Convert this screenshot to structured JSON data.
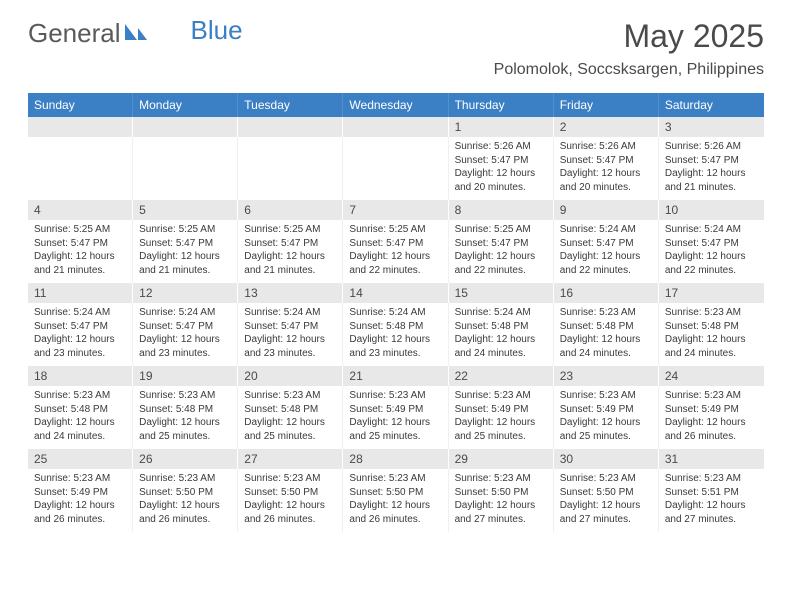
{
  "brand": {
    "part1": "General",
    "part2": "Blue"
  },
  "title": "May 2025",
  "location": "Polomolok, Soccsksargen, Philippines",
  "colors": {
    "header_bg": "#3b7fc4",
    "header_text": "#ffffff",
    "daynum_bg": "#e8e8e8",
    "body_bg": "#ffffff",
    "text": "#3a3a3a"
  },
  "weekdays": [
    "Sunday",
    "Monday",
    "Tuesday",
    "Wednesday",
    "Thursday",
    "Friday",
    "Saturday"
  ],
  "weeks": [
    [
      {
        "n": "",
        "lines": []
      },
      {
        "n": "",
        "lines": []
      },
      {
        "n": "",
        "lines": []
      },
      {
        "n": "",
        "lines": []
      },
      {
        "n": "1",
        "lines": [
          "Sunrise: 5:26 AM",
          "Sunset: 5:47 PM",
          "Daylight: 12 hours and 20 minutes."
        ]
      },
      {
        "n": "2",
        "lines": [
          "Sunrise: 5:26 AM",
          "Sunset: 5:47 PM",
          "Daylight: 12 hours and 20 minutes."
        ]
      },
      {
        "n": "3",
        "lines": [
          "Sunrise: 5:26 AM",
          "Sunset: 5:47 PM",
          "Daylight: 12 hours and 21 minutes."
        ]
      }
    ],
    [
      {
        "n": "4",
        "lines": [
          "Sunrise: 5:25 AM",
          "Sunset: 5:47 PM",
          "Daylight: 12 hours and 21 minutes."
        ]
      },
      {
        "n": "5",
        "lines": [
          "Sunrise: 5:25 AM",
          "Sunset: 5:47 PM",
          "Daylight: 12 hours and 21 minutes."
        ]
      },
      {
        "n": "6",
        "lines": [
          "Sunrise: 5:25 AM",
          "Sunset: 5:47 PM",
          "Daylight: 12 hours and 21 minutes."
        ]
      },
      {
        "n": "7",
        "lines": [
          "Sunrise: 5:25 AM",
          "Sunset: 5:47 PM",
          "Daylight: 12 hours and 22 minutes."
        ]
      },
      {
        "n": "8",
        "lines": [
          "Sunrise: 5:25 AM",
          "Sunset: 5:47 PM",
          "Daylight: 12 hours and 22 minutes."
        ]
      },
      {
        "n": "9",
        "lines": [
          "Sunrise: 5:24 AM",
          "Sunset: 5:47 PM",
          "Daylight: 12 hours and 22 minutes."
        ]
      },
      {
        "n": "10",
        "lines": [
          "Sunrise: 5:24 AM",
          "Sunset: 5:47 PM",
          "Daylight: 12 hours and 22 minutes."
        ]
      }
    ],
    [
      {
        "n": "11",
        "lines": [
          "Sunrise: 5:24 AM",
          "Sunset: 5:47 PM",
          "Daylight: 12 hours and 23 minutes."
        ]
      },
      {
        "n": "12",
        "lines": [
          "Sunrise: 5:24 AM",
          "Sunset: 5:47 PM",
          "Daylight: 12 hours and 23 minutes."
        ]
      },
      {
        "n": "13",
        "lines": [
          "Sunrise: 5:24 AM",
          "Sunset: 5:47 PM",
          "Daylight: 12 hours and 23 minutes."
        ]
      },
      {
        "n": "14",
        "lines": [
          "Sunrise: 5:24 AM",
          "Sunset: 5:48 PM",
          "Daylight: 12 hours and 23 minutes."
        ]
      },
      {
        "n": "15",
        "lines": [
          "Sunrise: 5:24 AM",
          "Sunset: 5:48 PM",
          "Daylight: 12 hours and 24 minutes."
        ]
      },
      {
        "n": "16",
        "lines": [
          "Sunrise: 5:23 AM",
          "Sunset: 5:48 PM",
          "Daylight: 12 hours and 24 minutes."
        ]
      },
      {
        "n": "17",
        "lines": [
          "Sunrise: 5:23 AM",
          "Sunset: 5:48 PM",
          "Daylight: 12 hours and 24 minutes."
        ]
      }
    ],
    [
      {
        "n": "18",
        "lines": [
          "Sunrise: 5:23 AM",
          "Sunset: 5:48 PM",
          "Daylight: 12 hours and 24 minutes."
        ]
      },
      {
        "n": "19",
        "lines": [
          "Sunrise: 5:23 AM",
          "Sunset: 5:48 PM",
          "Daylight: 12 hours and 25 minutes."
        ]
      },
      {
        "n": "20",
        "lines": [
          "Sunrise: 5:23 AM",
          "Sunset: 5:48 PM",
          "Daylight: 12 hours and 25 minutes."
        ]
      },
      {
        "n": "21",
        "lines": [
          "Sunrise: 5:23 AM",
          "Sunset: 5:49 PM",
          "Daylight: 12 hours and 25 minutes."
        ]
      },
      {
        "n": "22",
        "lines": [
          "Sunrise: 5:23 AM",
          "Sunset: 5:49 PM",
          "Daylight: 12 hours and 25 minutes."
        ]
      },
      {
        "n": "23",
        "lines": [
          "Sunrise: 5:23 AM",
          "Sunset: 5:49 PM",
          "Daylight: 12 hours and 25 minutes."
        ]
      },
      {
        "n": "24",
        "lines": [
          "Sunrise: 5:23 AM",
          "Sunset: 5:49 PM",
          "Daylight: 12 hours and 26 minutes."
        ]
      }
    ],
    [
      {
        "n": "25",
        "lines": [
          "Sunrise: 5:23 AM",
          "Sunset: 5:49 PM",
          "Daylight: 12 hours and 26 minutes."
        ]
      },
      {
        "n": "26",
        "lines": [
          "Sunrise: 5:23 AM",
          "Sunset: 5:50 PM",
          "Daylight: 12 hours and 26 minutes."
        ]
      },
      {
        "n": "27",
        "lines": [
          "Sunrise: 5:23 AM",
          "Sunset: 5:50 PM",
          "Daylight: 12 hours and 26 minutes."
        ]
      },
      {
        "n": "28",
        "lines": [
          "Sunrise: 5:23 AM",
          "Sunset: 5:50 PM",
          "Daylight: 12 hours and 26 minutes."
        ]
      },
      {
        "n": "29",
        "lines": [
          "Sunrise: 5:23 AM",
          "Sunset: 5:50 PM",
          "Daylight: 12 hours and 27 minutes."
        ]
      },
      {
        "n": "30",
        "lines": [
          "Sunrise: 5:23 AM",
          "Sunset: 5:50 PM",
          "Daylight: 12 hours and 27 minutes."
        ]
      },
      {
        "n": "31",
        "lines": [
          "Sunrise: 5:23 AM",
          "Sunset: 5:51 PM",
          "Daylight: 12 hours and 27 minutes."
        ]
      }
    ]
  ]
}
